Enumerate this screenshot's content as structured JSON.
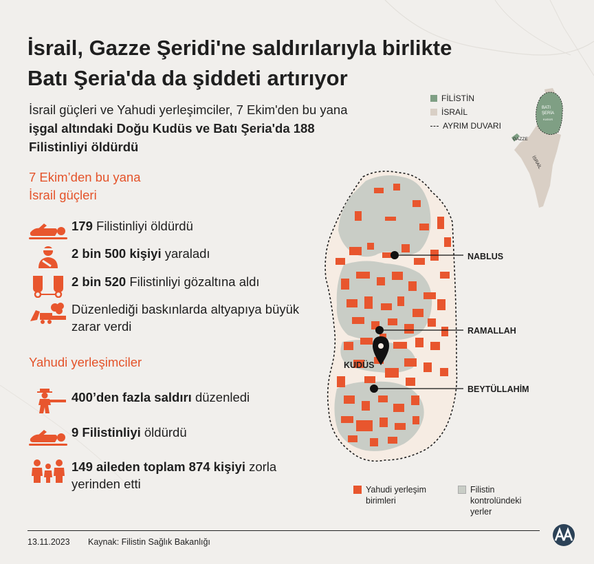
{
  "header": {
    "title_line1": "İsrail, Gazze Şeridi'ne saldırılarıyla birlikte",
    "title_line2": "Batı Şeria'da da şiddeti artırıyor"
  },
  "intro": {
    "part1": "İsrail güçleri ve Yahudi yerleşimciler, 7 Ekim'den bu yana ",
    "bold": "işgal altındaki Doğu Kudüs ve Batı Şeria'da 188 Filistinliyi öldürdü"
  },
  "section_forces": {
    "heading_line1": "7 Ekim’den bu yana",
    "heading_line2": "İsrail güçleri",
    "items": [
      {
        "icon": "lying-person-icon",
        "bold": "179",
        "text": " Filistinliyi öldürdü"
      },
      {
        "icon": "injured-person-icon",
        "bold": "2 bin 500 kişiyi",
        "text": " yaraladı"
      },
      {
        "icon": "handcuffs-icon",
        "bold": "2 bin 520",
        "text": " Filistinliyi gözaltına aldı"
      },
      {
        "icon": "bulldozer-icon",
        "bold": "",
        "text": "Düzenlediği baskınlarda altyapıya büyük zarar verdi"
      }
    ]
  },
  "section_settlers": {
    "heading": "Yahudi yerleşimciler",
    "items": [
      {
        "icon": "gunman-icon",
        "bold": "400’den fazla saldırı",
        "text": " düzenledi"
      },
      {
        "icon": "lying-person-icon",
        "bold": "9 Filistinliyi",
        "text": " öldürdü"
      },
      {
        "icon": "family-icon",
        "bold": "149 aileden toplam 874 kişiyi",
        "text": " zorla yerinden etti"
      }
    ]
  },
  "map": {
    "cities": [
      "NABLUS",
      "RAMALLAH",
      "KUDÜS",
      "BEYTÜLLAHİM"
    ],
    "legend": {
      "settlement_line1": "Yahudi yerleşim",
      "settlement_line2": "birimleri",
      "palestine_line1": "Filistin",
      "palestine_line2": "kontrolündeki",
      "palestine_line3": "yerler"
    },
    "colors": {
      "settlement": "#e8562e",
      "palestine_control": "#c9cdc6",
      "west_bank_base": "#f6ece3",
      "inset_palestine": "#7f9f84",
      "inset_israel": "#d9cfc5"
    }
  },
  "inset": {
    "legend_palestine": "FİLİSTİN",
    "legend_israel": "İSRAİL",
    "legend_wall": "AYRIM DUVARI",
    "label_west_bank_1": "BATI",
    "label_west_bank_2": "ŞERİA",
    "label_gaza": "GAZZE",
    "label_israel": "İSRAİL",
    "label_jerusalem": "KUDÜS"
  },
  "footer": {
    "date": "13.11.2023",
    "source": "Kaynak: Filistin Sağlık Bakanlığı",
    "logo": "aa-logo"
  }
}
